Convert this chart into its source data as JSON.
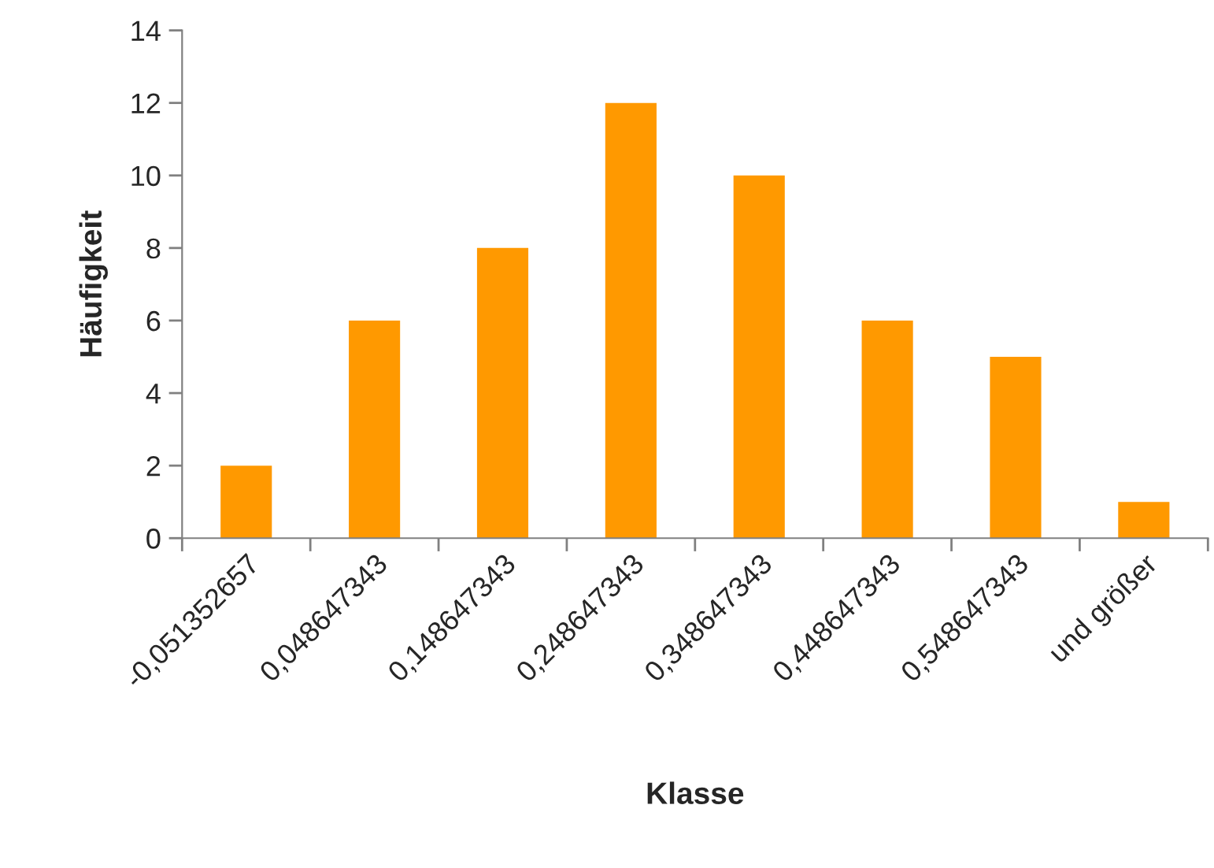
{
  "chart_data": {
    "type": "bar",
    "xlabel": "Klasse",
    "ylabel": "Häufigkeit",
    "categories": [
      "-0,051352657",
      "0,048647343",
      "0,148647343",
      "0,248647343",
      "0,348647343",
      "0,448647343",
      "0,548647343",
      "und größer"
    ],
    "values": [
      2,
      6,
      8,
      12,
      10,
      6,
      5,
      1
    ],
    "color": "#ff9900",
    "ylim": [
      0,
      14
    ],
    "yticks": [
      0,
      2,
      4,
      6,
      8,
      10,
      12,
      14
    ],
    "grid": false
  }
}
